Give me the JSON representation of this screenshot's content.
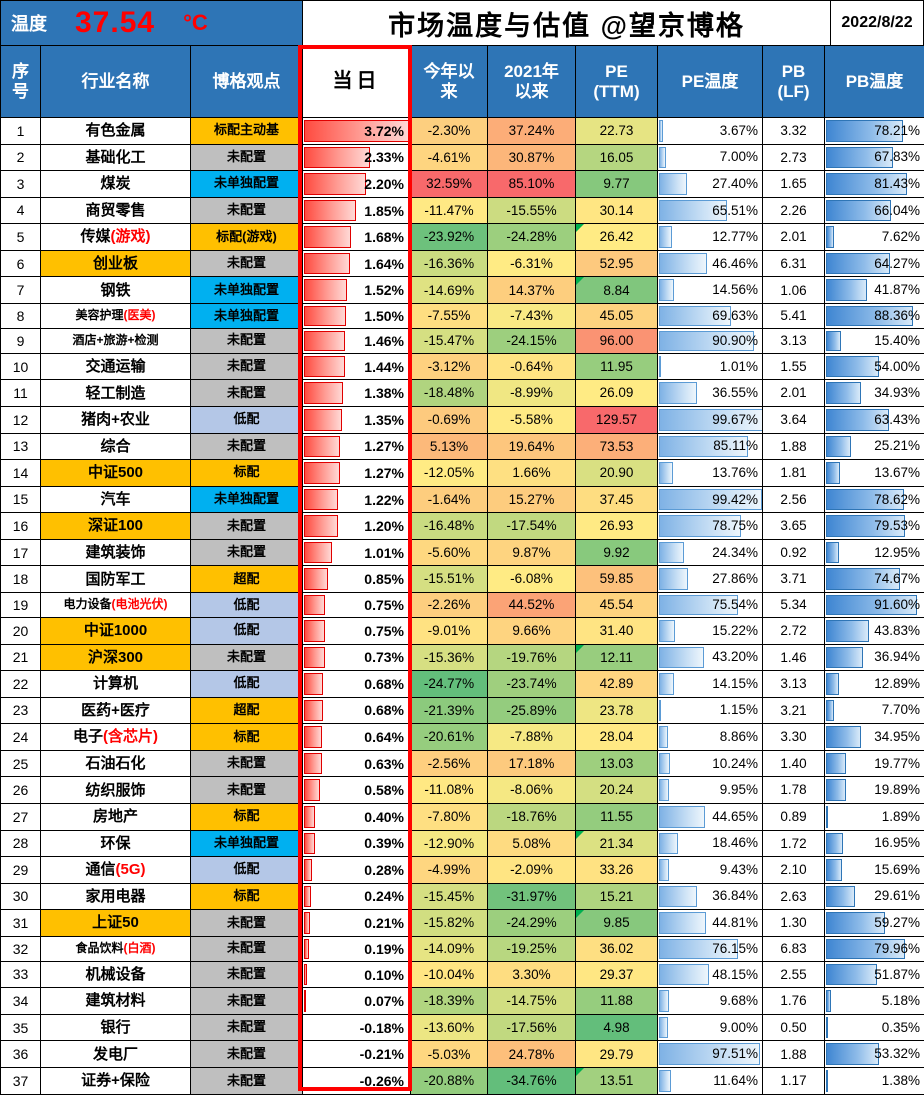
{
  "header": {
    "temp_label": "温度",
    "temp_value": "37.54",
    "temp_unit": "°C",
    "title": "市场温度与估值 @望京博格",
    "date": "2022/8/22"
  },
  "colors": {
    "header_bg": "#2E75B6",
    "highlight_box": "#FF0000",
    "temp_value": "#FF0000",
    "name_highlight_bg": "#FFC000",
    "scale": {
      "low": "#63BE7B",
      "mid": "#FFEB84",
      "high": "#F8696B"
    },
    "view_bg": {
      "orange": "#FFC000",
      "gray": "#BFBFBF",
      "cyan": "#00B0F0",
      "blue": "#B4C7E7"
    },
    "day_bar": "#FF0000",
    "pe_bar": "#5B9BD5",
    "pb_bar": "#2E75B6"
  },
  "chart_data": {
    "type": "table",
    "title": "市场温度与估值 @望京博格",
    "date": "2022/8/22",
    "market_temperature_c": 37.54,
    "columns": [
      "序\n号",
      "行业名称",
      "博格观点",
      "当日",
      "今年以\n来",
      "2021年\n以来",
      "PE\n(TTM)",
      "PE温度",
      "PB\n(LF)",
      "PB温度"
    ],
    "rows": [
      {
        "no": 1,
        "name": "有色金属",
        "view": "标配主动基",
        "view_bg": "orange",
        "day": 3.72,
        "ytd": -2.3,
        "y21": 37.24,
        "pe": 22.73,
        "pe_temp": 3.67,
        "pb": 3.32,
        "pb_temp": 78.21
      },
      {
        "no": 2,
        "name": "基础化工",
        "view": "未配置",
        "view_bg": "gray",
        "day": 2.33,
        "ytd": -4.61,
        "y21": 30.87,
        "pe": 16.05,
        "pe_temp": 7.0,
        "pb": 2.73,
        "pb_temp": 67.83
      },
      {
        "no": 3,
        "name": "煤炭",
        "view": "未单独配置",
        "view_bg": "cyan",
        "day": 2.2,
        "ytd": 32.59,
        "y21": 85.1,
        "pe": 9.77,
        "pe_temp": 27.4,
        "pb": 1.65,
        "pb_temp": 81.43
      },
      {
        "no": 4,
        "name": "商贸零售",
        "view": "未配置",
        "view_bg": "gray",
        "day": 1.85,
        "ytd": -11.47,
        "y21": -15.55,
        "pe": 30.14,
        "pe_temp": 65.51,
        "pb": 2.26,
        "pb_temp": 66.04
      },
      {
        "no": 5,
        "name": "传媒",
        "name_red": "(游戏)",
        "view": "标配(游戏)",
        "view_bg": "orange",
        "day": 1.68,
        "ytd": -23.92,
        "y21": -24.28,
        "pe": 26.42,
        "pe_flag": true,
        "pe_temp": 12.77,
        "pb": 2.01,
        "pb_temp": 7.62
      },
      {
        "no": 6,
        "name": "创业板",
        "name_bg": "orange",
        "view": "未配置",
        "view_bg": "gray",
        "day": 1.64,
        "ytd": -16.36,
        "y21": -6.31,
        "pe": 52.95,
        "pe_temp": 46.46,
        "pb": 6.31,
        "pb_temp": 64.27
      },
      {
        "no": 7,
        "name": "钢铁",
        "view": "未单独配置",
        "view_bg": "cyan",
        "day": 1.52,
        "ytd": -14.69,
        "y21": 14.37,
        "pe": 8.84,
        "pe_flag": true,
        "pe_temp": 14.56,
        "pb": 1.06,
        "pb_temp": 41.87
      },
      {
        "no": 8,
        "name": "美容护理",
        "name_red": "(医美)",
        "view": "未单独配置",
        "view_bg": "cyan",
        "day": 1.5,
        "ytd": -7.55,
        "y21": -7.43,
        "pe": 45.05,
        "pe_temp": 69.63,
        "pb": 5.41,
        "pb_temp": 88.36
      },
      {
        "no": 9,
        "name": "酒店+旅游+检测",
        "view": "未配置",
        "view_bg": "gray",
        "day": 1.46,
        "ytd": -15.47,
        "y21": -24.15,
        "pe": 96.0,
        "pe_temp": 90.9,
        "pb": 3.13,
        "pb_temp": 15.4
      },
      {
        "no": 10,
        "name": "交通运输",
        "view": "未配置",
        "view_bg": "gray",
        "day": 1.44,
        "ytd": -3.12,
        "y21": -0.64,
        "pe": 11.95,
        "pe_temp": 1.01,
        "pb": 1.55,
        "pb_temp": 54.0
      },
      {
        "no": 11,
        "name": "轻工制造",
        "view": "未配置",
        "view_bg": "gray",
        "day": 1.38,
        "ytd": -18.48,
        "y21": -8.99,
        "pe": 26.09,
        "pe_temp": 36.55,
        "pb": 2.01,
        "pb_temp": 34.93
      },
      {
        "no": 12,
        "name": "猪肉+农业",
        "view": "低配",
        "view_bg": "blue",
        "day": 1.35,
        "ytd": -0.69,
        "y21": -5.58,
        "pe": 129.57,
        "pe_temp": 99.67,
        "pb": 3.64,
        "pb_temp": 63.43
      },
      {
        "no": 13,
        "name": "综合",
        "view": "未配置",
        "view_bg": "gray",
        "day": 1.27,
        "ytd": 5.13,
        "y21": 19.64,
        "pe": 73.53,
        "pe_temp": 85.11,
        "pb": 1.88,
        "pb_temp": 25.21
      },
      {
        "no": 14,
        "name": "中证500",
        "name_bg": "orange",
        "view": "标配",
        "view_bg": "orange",
        "day": 1.27,
        "ytd": -12.05,
        "y21": 1.66,
        "pe": 20.9,
        "pe_temp": 13.76,
        "pb": 1.81,
        "pb_temp": 13.67
      },
      {
        "no": 15,
        "name": "汽车",
        "view": "未单独配置",
        "view_bg": "cyan",
        "day": 1.22,
        "ytd": -1.64,
        "y21": 15.27,
        "pe": 37.45,
        "pe_temp": 99.42,
        "pb": 2.56,
        "pb_temp": 78.62
      },
      {
        "no": 16,
        "name": "深证100",
        "name_bg": "orange",
        "view": "未配置",
        "view_bg": "gray",
        "day": 1.2,
        "ytd": -16.48,
        "y21": -17.54,
        "pe": 26.93,
        "pe_temp": 78.75,
        "pb": 3.65,
        "pb_temp": 79.53
      },
      {
        "no": 17,
        "name": "建筑装饰",
        "view": "未配置",
        "view_bg": "gray",
        "day": 1.01,
        "ytd": -5.6,
        "y21": 9.87,
        "pe": 9.92,
        "pe_temp": 24.34,
        "pb": 0.92,
        "pb_temp": 12.95
      },
      {
        "no": 18,
        "name": "国防军工",
        "view": "超配",
        "view_bg": "orange",
        "day": 0.85,
        "ytd": -15.51,
        "y21": -6.08,
        "pe": 59.85,
        "pe_temp": 27.86,
        "pb": 3.71,
        "pb_temp": 74.67
      },
      {
        "no": 19,
        "name": "电力设备",
        "name_red": "(电池光伏)",
        "view": "低配",
        "view_bg": "blue",
        "day": 0.75,
        "ytd": -2.26,
        "y21": 44.52,
        "pe": 45.54,
        "pe_temp": 75.54,
        "pb": 5.34,
        "pb_temp": 91.6
      },
      {
        "no": 20,
        "name": "中证1000",
        "name_bg": "orange",
        "view": "低配",
        "view_bg": "blue",
        "day": 0.75,
        "ytd": -9.01,
        "y21": 9.66,
        "pe": 31.4,
        "pe_temp": 15.22,
        "pb": 2.72,
        "pb_temp": 43.83
      },
      {
        "no": 21,
        "name": "沪深300",
        "name_bg": "orange",
        "view": "未配置",
        "view_bg": "gray",
        "day": 0.73,
        "ytd": -15.36,
        "y21": -19.76,
        "pe": 12.11,
        "pe_flag": true,
        "pe_temp": 43.2,
        "pb": 1.46,
        "pb_temp": 36.94
      },
      {
        "no": 22,
        "name": "计算机",
        "view": "低配",
        "view_bg": "blue",
        "day": 0.68,
        "ytd": -24.77,
        "y21": -23.74,
        "pe": 42.89,
        "pe_temp": 14.15,
        "pb": 3.13,
        "pb_temp": 12.89
      },
      {
        "no": 23,
        "name": "医药+医疗",
        "view": "超配",
        "view_bg": "orange",
        "day": 0.68,
        "ytd": -21.39,
        "y21": -25.89,
        "pe": 23.78,
        "pe_temp": 1.15,
        "pb": 3.21,
        "pb_temp": 7.7
      },
      {
        "no": 24,
        "name": "电子",
        "name_red": "(含芯片)",
        "view": "标配",
        "view_bg": "orange",
        "day": 0.64,
        "ytd": -20.61,
        "y21": -7.88,
        "pe": 28.04,
        "pe_temp": 8.86,
        "pb": 3.3,
        "pb_temp": 34.95
      },
      {
        "no": 25,
        "name": "石油石化",
        "view": "未配置",
        "view_bg": "gray",
        "day": 0.63,
        "ytd": -2.56,
        "y21": 17.18,
        "pe": 13.03,
        "pe_temp": 10.24,
        "pb": 1.4,
        "pb_temp": 19.77
      },
      {
        "no": 26,
        "name": "纺织服饰",
        "view": "未配置",
        "view_bg": "gray",
        "day": 0.58,
        "ytd": -11.08,
        "y21": -8.06,
        "pe": 20.24,
        "pe_temp": 9.95,
        "pb": 1.78,
        "pb_temp": 19.89
      },
      {
        "no": 27,
        "name": "房地产",
        "view": "标配",
        "view_bg": "orange",
        "day": 0.4,
        "ytd": -7.8,
        "y21": -18.76,
        "pe": 11.55,
        "pe_temp": 44.65,
        "pb": 0.89,
        "pb_temp": 1.89
      },
      {
        "no": 28,
        "name": "环保",
        "view": "未单独配置",
        "view_bg": "cyan",
        "day": 0.39,
        "ytd": -12.9,
        "y21": 5.08,
        "pe": 21.34,
        "pe_flag": true,
        "pe_temp": 18.46,
        "pb": 1.72,
        "pb_temp": 16.95
      },
      {
        "no": 29,
        "name": "通信",
        "name_red": "(5G)",
        "view": "低配",
        "view_bg": "blue",
        "day": 0.28,
        "ytd": -4.99,
        "y21": -2.09,
        "pe": 33.26,
        "pe_temp": 9.43,
        "pb": 2.1,
        "pb_temp": 15.69
      },
      {
        "no": 30,
        "name": "家用电器",
        "view": "标配",
        "view_bg": "orange",
        "day": 0.24,
        "ytd": -15.45,
        "y21": -31.97,
        "pe": 15.21,
        "pe_temp": 36.84,
        "pb": 2.63,
        "pb_temp": 29.61
      },
      {
        "no": 31,
        "name": "上证50",
        "name_bg": "orange",
        "view": "未配置",
        "view_bg": "gray",
        "day": 0.21,
        "ytd": -15.82,
        "y21": -24.29,
        "pe": 9.85,
        "pe_flag": true,
        "pe_temp": 44.81,
        "pb": 1.3,
        "pb_temp": 59.27
      },
      {
        "no": 32,
        "name": "食品饮料",
        "name_red": "(白酒)",
        "view": "未配置",
        "view_bg": "gray",
        "day": 0.19,
        "ytd": -14.09,
        "y21": -19.25,
        "pe": 36.02,
        "pe_temp": 76.15,
        "pb": 6.83,
        "pb_temp": 79.96
      },
      {
        "no": 33,
        "name": "机械设备",
        "view": "未配置",
        "view_bg": "gray",
        "day": 0.1,
        "ytd": -10.04,
        "y21": 3.3,
        "pe": 29.37,
        "pe_temp": 48.15,
        "pb": 2.55,
        "pb_temp": 51.87
      },
      {
        "no": 34,
        "name": "建筑材料",
        "view": "未配置",
        "view_bg": "gray",
        "day": 0.07,
        "ytd": -18.39,
        "y21": -14.75,
        "pe": 11.88,
        "pe_temp": 9.68,
        "pb": 1.76,
        "pb_temp": 5.18
      },
      {
        "no": 35,
        "name": "银行",
        "view": "未配置",
        "view_bg": "gray",
        "day": -0.18,
        "ytd": -13.6,
        "y21": -17.56,
        "pe": 4.98,
        "pe_temp": 9.0,
        "pb": 0.5,
        "pb_temp": 0.35
      },
      {
        "no": 36,
        "name": "发电厂",
        "view": "未配置",
        "view_bg": "gray",
        "day": -0.21,
        "ytd": -5.03,
        "y21": 24.78,
        "pe": 29.79,
        "pe_temp": 97.51,
        "pb": 1.88,
        "pb_temp": 53.32
      },
      {
        "no": 37,
        "name": "证券+保险",
        "view": "未配置",
        "view_bg": "gray",
        "day": -0.26,
        "ytd": -20.88,
        "y21": -34.76,
        "pe": 13.51,
        "pe_flag": true,
        "pe_temp": 11.64,
        "pb": 1.17,
        "pb_temp": 1.38
      }
    ]
  }
}
